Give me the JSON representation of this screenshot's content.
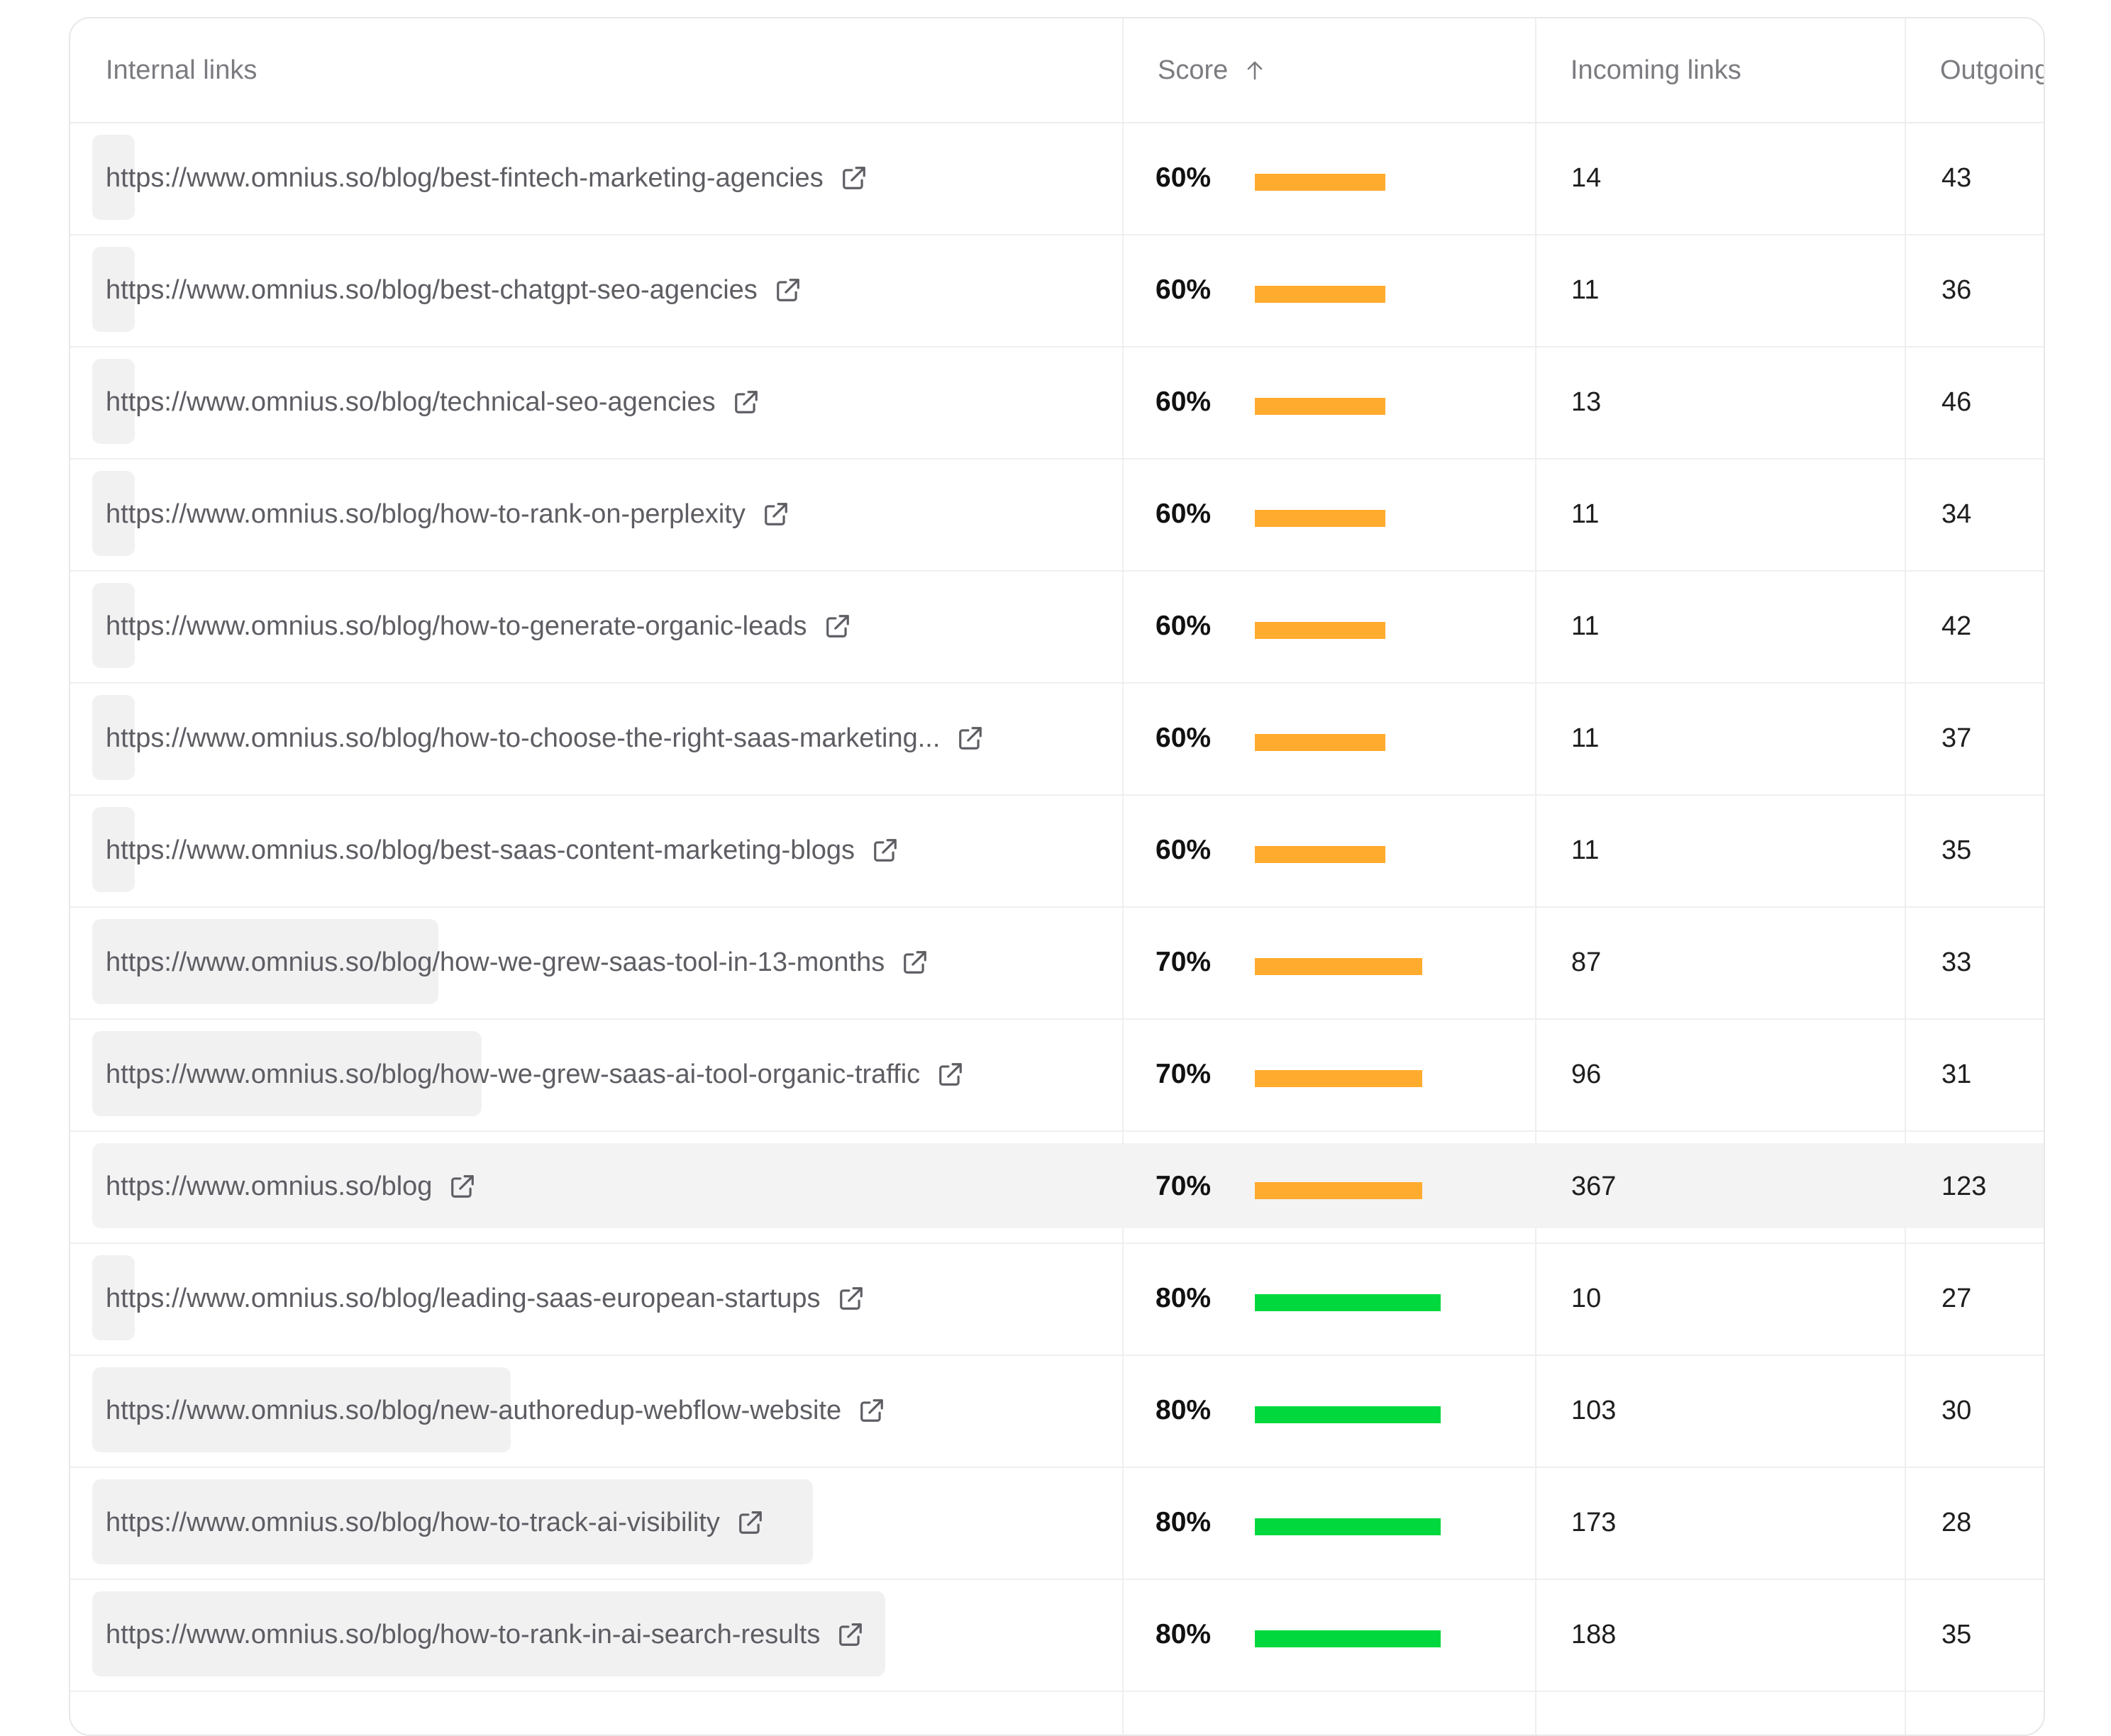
{
  "table": {
    "headers": {
      "internal_links": "Internal links",
      "score": "Score",
      "incoming_links": "Incoming links",
      "outgoing_links": "Outgoing"
    },
    "sort": {
      "column": "score",
      "direction": "ascending",
      "icon": "arrow-up-icon"
    },
    "colors": {
      "mid_score": "#FFAB2E",
      "high_score": "#00D83E"
    },
    "rows": [
      {
        "url": "https://www.omnius.so/blog/best-fintech-marketing-agencies",
        "score": "60%",
        "score_value": 0.6,
        "incoming": "14",
        "outgoing": "43",
        "traffic_share": 0.01
      },
      {
        "url": "https://www.omnius.so/blog/best-chatgpt-seo-agencies",
        "score": "60%",
        "score_value": 0.6,
        "incoming": "11",
        "outgoing": "36",
        "traffic_share": 0.005
      },
      {
        "url": "https://www.omnius.so/blog/technical-seo-agencies",
        "score": "60%",
        "score_value": 0.6,
        "incoming": "13",
        "outgoing": "46",
        "traffic_share": 0.008
      },
      {
        "url": "https://www.omnius.so/blog/how-to-rank-on-perplexity",
        "score": "60%",
        "score_value": 0.6,
        "incoming": "11",
        "outgoing": "34",
        "traffic_share": 0.005
      },
      {
        "url": "https://www.omnius.so/blog/how-to-generate-organic-leads",
        "score": "60%",
        "score_value": 0.6,
        "incoming": "11",
        "outgoing": "42",
        "traffic_share": 0.005
      },
      {
        "url": "https://www.omnius.so/blog/how-to-choose-the-right-saas-marketing...",
        "score": "60%",
        "score_value": 0.6,
        "incoming": "11",
        "outgoing": "37",
        "traffic_share": 0.005
      },
      {
        "url": "https://www.omnius.so/blog/best-saas-content-marketing-blogs",
        "score": "60%",
        "score_value": 0.6,
        "incoming": "11",
        "outgoing": "35",
        "traffic_share": 0.005
      },
      {
        "url": "https://www.omnius.so/blog/how-we-grew-saas-tool-in-13-months",
        "score": "70%",
        "score_value": 0.7,
        "incoming": "87",
        "outgoing": "33",
        "traffic_share": 0.24
      },
      {
        "url": "https://www.omnius.so/blog/how-we-grew-saas-ai-tool-organic-traffic",
        "score": "70%",
        "score_value": 0.7,
        "incoming": "96",
        "outgoing": "31",
        "traffic_share": 0.27
      },
      {
        "url": "https://www.omnius.so/blog",
        "score": "70%",
        "score_value": 0.7,
        "incoming": "367",
        "outgoing": "123",
        "traffic_share": 1.0,
        "highlighted": true
      },
      {
        "url": "https://www.omnius.so/blog/leading-saas-european-startups",
        "score": "80%",
        "score_value": 0.8,
        "incoming": "10",
        "outgoing": "27",
        "traffic_share": 0.003
      },
      {
        "url": "https://www.omnius.so/blog/new-authoredup-webflow-website",
        "score": "80%",
        "score_value": 0.8,
        "incoming": "103",
        "outgoing": "30",
        "traffic_share": 0.29
      },
      {
        "url": "https://www.omnius.so/blog/how-to-track-ai-visibility",
        "score": "80%",
        "score_value": 0.8,
        "incoming": "173",
        "outgoing": "28",
        "traffic_share": 0.5
      },
      {
        "url": "https://www.omnius.so/blog/how-to-rank-in-ai-search-results",
        "score": "80%",
        "score_value": 0.8,
        "incoming": "188",
        "outgoing": "35",
        "traffic_share": 0.55
      }
    ]
  }
}
